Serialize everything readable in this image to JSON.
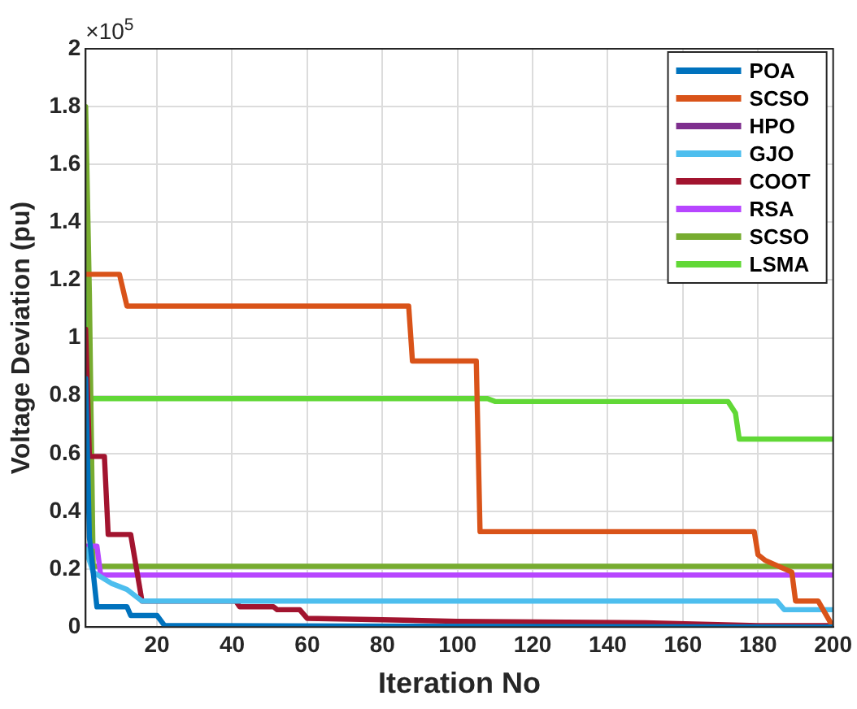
{
  "chart_data": {
    "type": "line",
    "xlabel": "Iteration No",
    "ylabel": "Voltage Deviation (pu)",
    "annotations": [
      "×10$^{5}$"
    ],
    "xlim": [
      1,
      200
    ],
    "xticks": [
      20,
      40,
      60,
      80,
      100,
      120,
      140,
      160,
      180,
      200
    ],
    "ylim": [
      0,
      2
    ],
    "yticks": [
      0,
      0.2,
      0.4,
      0.6,
      0.8,
      1,
      1.2,
      1.4,
      1.6,
      1.8,
      2
    ],
    "grid": true,
    "legend": "top right",
    "marker": "none",
    "line_style": "solid",
    "series": [
      {
        "name": "POA",
        "color": "#0072bd",
        "x": [
          1,
          2,
          4,
          12,
          13,
          20,
          22,
          200
        ],
        "values": [
          0.86,
          0.31,
          0.07,
          0.07,
          0.04,
          0.04,
          0.005,
          0
        ]
      },
      {
        "name": "SCSO",
        "color": "#d95319",
        "x": [
          1,
          10,
          12,
          87,
          88,
          105,
          106,
          179,
          180,
          182,
          189,
          190,
          196,
          200
        ],
        "values": [
          1.22,
          1.22,
          1.11,
          1.11,
          0.92,
          0.92,
          0.33,
          0.33,
          0.25,
          0.23,
          0.19,
          0.09,
          0.09,
          0
        ]
      },
      {
        "name": "HPO",
        "color": "#7e2f8e"
      },
      {
        "name": "GJO",
        "color": "#4dbeee",
        "x": [
          1,
          3,
          8,
          12,
          16,
          185,
          187,
          200
        ],
        "values": [
          0.27,
          0.19,
          0.15,
          0.13,
          0.09,
          0.09,
          0.06,
          0.06
        ]
      },
      {
        "name": "COOT",
        "color": "#a2142f",
        "x": [
          1,
          2,
          6,
          7,
          13,
          16,
          41,
          42,
          51,
          52,
          58,
          60,
          100,
          150,
          180,
          200
        ],
        "values": [
          1.03,
          0.59,
          0.59,
          0.32,
          0.32,
          0.09,
          0.09,
          0.07,
          0.07,
          0.06,
          0.06,
          0.03,
          0.02,
          0.015,
          0.005,
          0.005
        ]
      },
      {
        "name": "RSA",
        "color": "#b746ff",
        "x": [
          1,
          4,
          5,
          200
        ],
        "values": [
          0.28,
          0.28,
          0.18,
          0.18
        ]
      },
      {
        "name": "SCSO",
        "color": "#77ac30",
        "x": [
          1,
          2,
          3,
          200
        ],
        "values": [
          1.8,
          1.15,
          0.21,
          0.21
        ]
      },
      {
        "name": "LSMA",
        "color": "#61d836",
        "x": [
          1,
          2,
          108,
          110,
          172,
          174,
          175,
          200
        ],
        "values": [
          1.25,
          0.79,
          0.79,
          0.78,
          0.78,
          0.74,
          0.65,
          0.65
        ]
      }
    ]
  }
}
